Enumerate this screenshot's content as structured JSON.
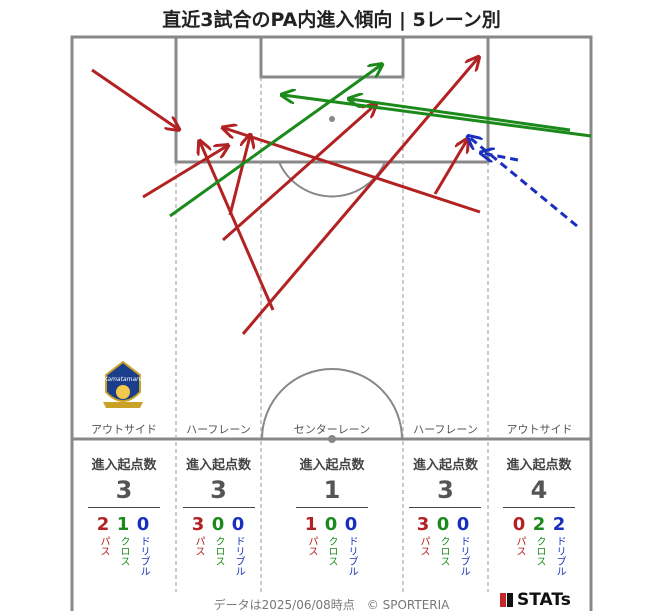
{
  "title": "直近3試合のPA内進入傾向 | 5レーン別",
  "lanes": [
    {
      "label": "アウトサイド",
      "header": "進入起点数",
      "total": "3",
      "pass": "2",
      "cross": "1",
      "dribble": "0"
    },
    {
      "label": "ハーフレーン",
      "header": "進入起点数",
      "total": "3",
      "pass": "3",
      "cross": "0",
      "dribble": "0"
    },
    {
      "label": "センターレーン",
      "header": "進入起点数",
      "total": "1",
      "pass": "1",
      "cross": "0",
      "dribble": "0"
    },
    {
      "label": "ハーフレーン",
      "header": "進入起点数",
      "total": "3",
      "pass": "3",
      "cross": "0",
      "dribble": "0"
    },
    {
      "label": "アウトサイド",
      "header": "進入起点数",
      "total": "4",
      "pass": "0",
      "cross": "2",
      "dribble": "2"
    }
  ],
  "legend_labels": {
    "pass": "パス",
    "cross": "クロス",
    "dribble": "ドリブル"
  },
  "colors": {
    "pass": "#b22222",
    "cross": "#1b8a1b",
    "dribble": "#1a2fbf",
    "pitch_line": "#888888"
  },
  "logo_text": "Kamatamare",
  "footer": "データは2025/06/08時点　© SPORTERIA",
  "brand": "STATs"
}
